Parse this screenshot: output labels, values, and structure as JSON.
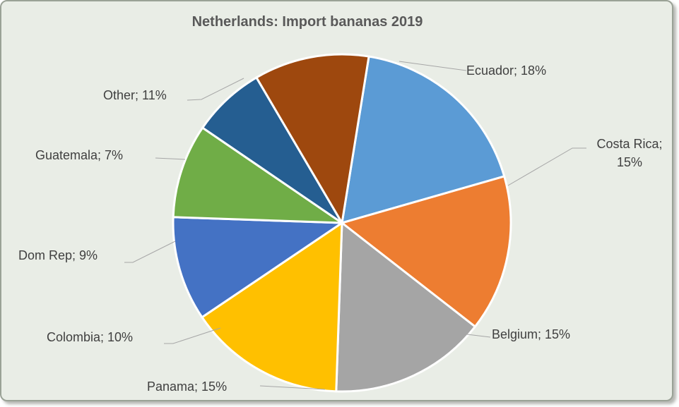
{
  "chart_data": {
    "type": "pie",
    "title": "Netherlands: Import bananas 2019",
    "slices": [
      {
        "name": "Ecuador",
        "value": 18,
        "color": "#5b9bd5",
        "label_lines": [
          "Ecuador; 18%"
        ]
      },
      {
        "name": "Costa Rica",
        "value": 15,
        "color": "#ed7d31",
        "label_lines": [
          "Costa Rica;",
          "15%"
        ]
      },
      {
        "name": "Belgium",
        "value": 15,
        "color": "#a5a5a5",
        "label_lines": [
          "Belgium; 15%"
        ]
      },
      {
        "name": "Panama",
        "value": 15,
        "color": "#ffc000",
        "label_lines": [
          "Panama; 15%"
        ]
      },
      {
        "name": "Colombia",
        "value": 10,
        "color": "#4472c4",
        "label_lines": [
          "Colombia; 10%"
        ]
      },
      {
        "name": "Dom Rep",
        "value": 9,
        "color": "#70ad47",
        "label_lines": [
          "Dom Rep; 9%"
        ]
      },
      {
        "name": "Guatemala",
        "value": 7,
        "color": "#255e91",
        "label_lines": [
          "Guatemala; 7%"
        ]
      },
      {
        "name": "Other",
        "value": 11,
        "color": "#9e480e",
        "label_lines": [
          "Other; 11%"
        ]
      }
    ],
    "legend": "none",
    "data_labels": "outside with leader lines"
  }
}
